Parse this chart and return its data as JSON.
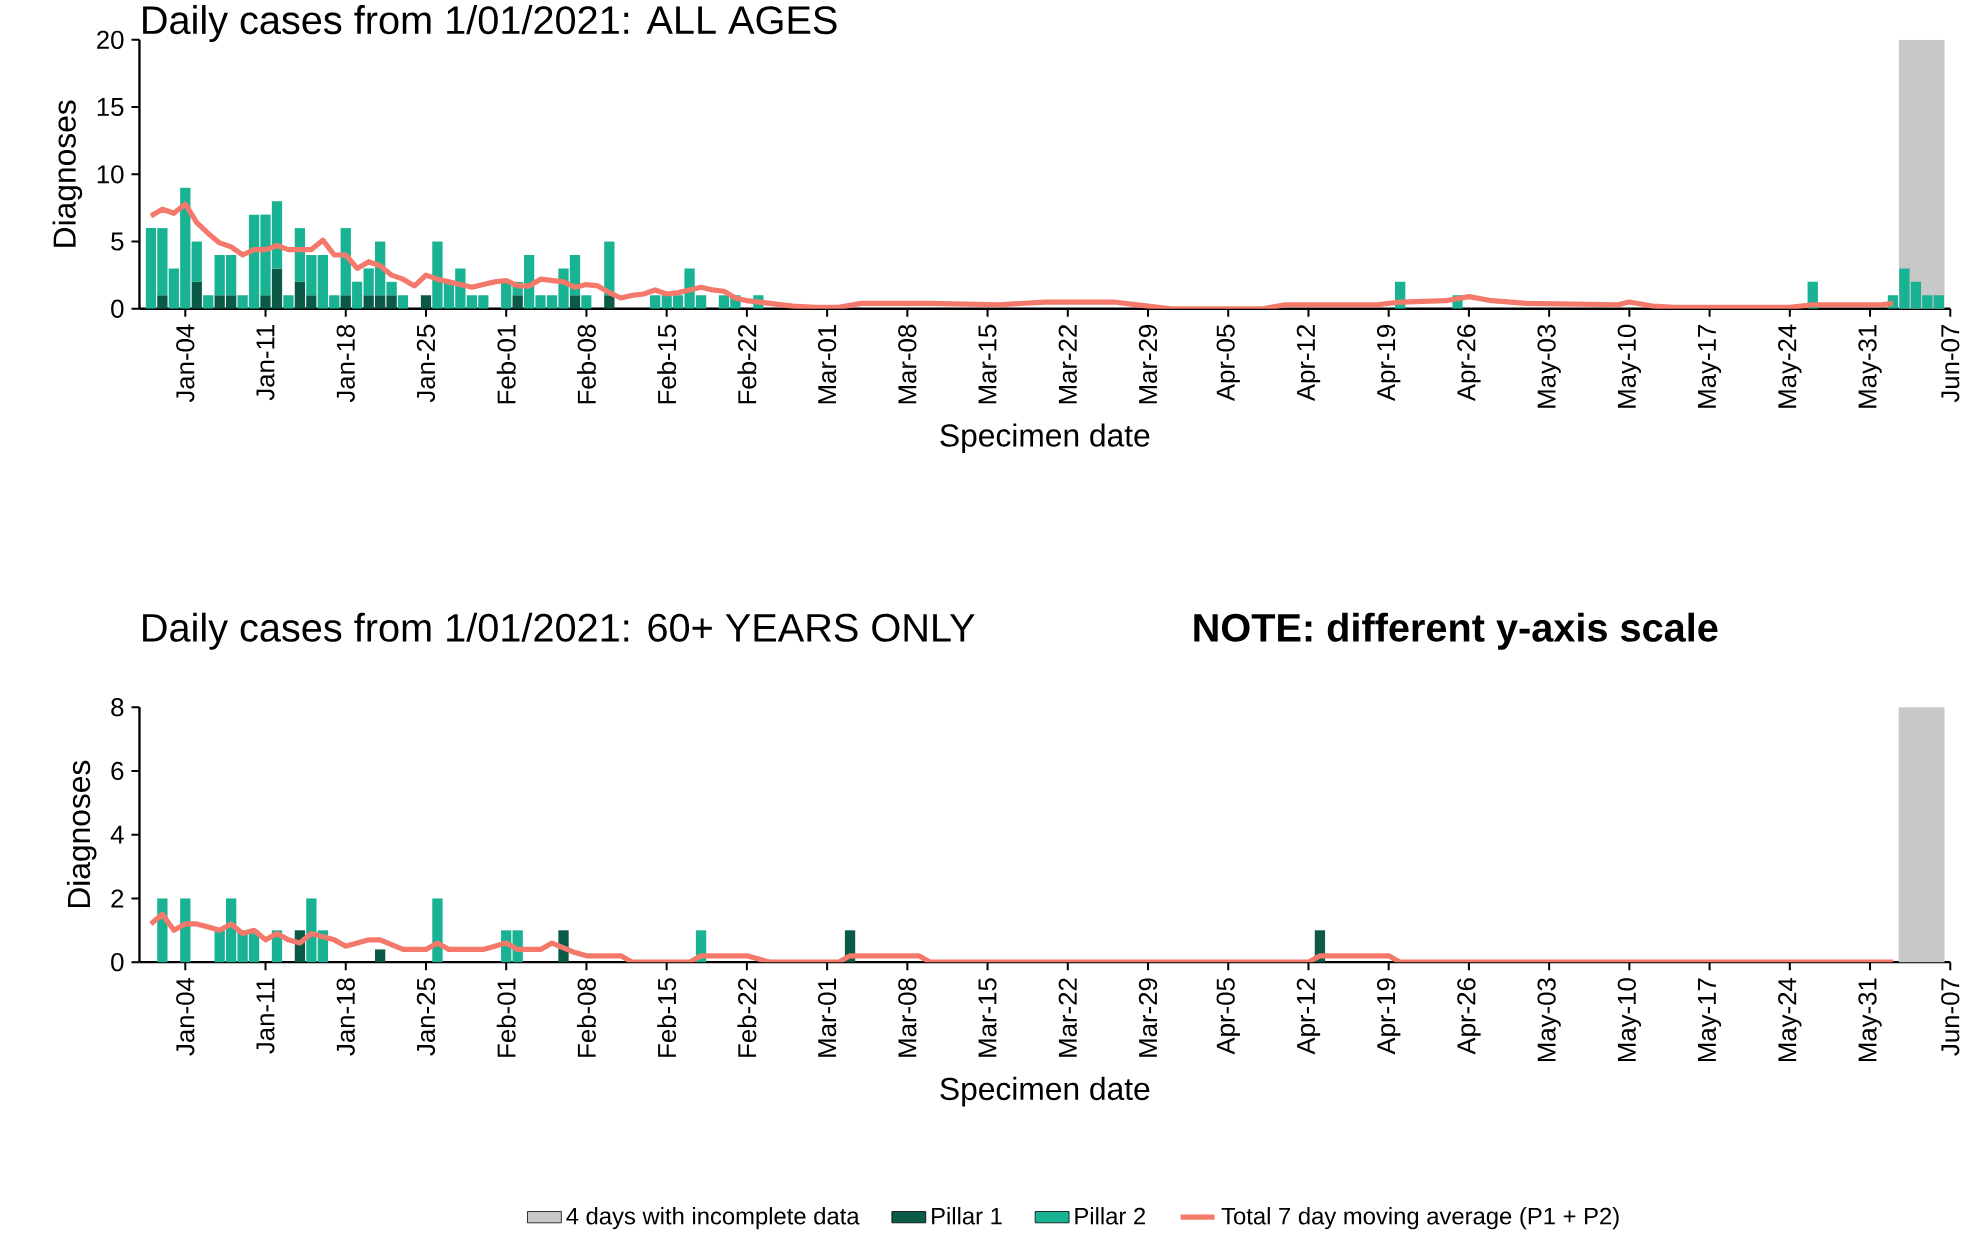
{
  "chart_data": [
    {
      "type": "bar",
      "stacked": true,
      "title": "Daily cases from 1/01/2021: ALL AGES",
      "xlabel": "Specimen date",
      "ylabel": "Diagnoses",
      "legend": false,
      "xlim": [
        "2020-12-31",
        "2021-06-07"
      ],
      "xticks": [
        {
          "value": "2021-01-04",
          "label": "Jan-04"
        },
        {
          "value": "2021-01-11",
          "label": "Jan-11"
        },
        {
          "value": "2021-01-18",
          "label": "Jan-18"
        },
        {
          "value": "2021-01-25",
          "label": "Jan-25"
        },
        {
          "value": "2021-02-01",
          "label": "Feb-01"
        },
        {
          "value": "2021-02-08",
          "label": "Feb-08"
        },
        {
          "value": "2021-02-15",
          "label": "Feb-15"
        },
        {
          "value": "2021-02-22",
          "label": "Feb-22"
        },
        {
          "value": "2021-03-01",
          "label": "Mar-01"
        },
        {
          "value": "2021-03-08",
          "label": "Mar-08"
        },
        {
          "value": "2021-03-15",
          "label": "Mar-15"
        },
        {
          "value": "2021-03-22",
          "label": "Mar-22"
        },
        {
          "value": "2021-03-29",
          "label": "Mar-29"
        },
        {
          "value": "2021-04-05",
          "label": "Apr-05"
        },
        {
          "value": "2021-04-12",
          "label": "Apr-12"
        },
        {
          "value": "2021-04-19",
          "label": "Apr-19"
        },
        {
          "value": "2021-04-26",
          "label": "Apr-26"
        },
        {
          "value": "2021-05-03",
          "label": "May-03"
        },
        {
          "value": "2021-05-10",
          "label": "May-10"
        },
        {
          "value": "2021-05-17",
          "label": "May-17"
        },
        {
          "value": "2021-05-24",
          "label": "May-24"
        },
        {
          "value": "2021-05-31",
          "label": "May-31"
        },
        {
          "value": "2021-06-07",
          "label": "Jun-07"
        }
      ],
      "ylim": [
        0,
        20
      ],
      "yticks": [
        0,
        5,
        10,
        15,
        20
      ],
      "bands": [
        {
          "axis": "x",
          "from": "2021-06-02T12:00",
          "to": "2021-06-06T12:00",
          "color": "#c8c8c8"
        }
      ],
      "x": [
        "2021-01-01",
        "2021-01-02",
        "2021-01-03",
        "2021-01-04",
        "2021-01-05",
        "2021-01-06",
        "2021-01-07",
        "2021-01-08",
        "2021-01-09",
        "2021-01-10",
        "2021-01-11",
        "2021-01-12",
        "2021-01-13",
        "2021-01-14",
        "2021-01-15",
        "2021-01-16",
        "2021-01-17",
        "2021-01-18",
        "2021-01-19",
        "2021-01-20",
        "2021-01-21",
        "2021-01-22",
        "2021-01-23",
        "2021-01-25",
        "2021-01-26",
        "2021-01-27",
        "2021-01-28",
        "2021-01-29",
        "2021-01-30",
        "2021-02-01",
        "2021-02-02",
        "2021-02-03",
        "2021-02-04",
        "2021-02-05",
        "2021-02-06",
        "2021-02-07",
        "2021-02-08",
        "2021-02-10",
        "2021-02-14",
        "2021-02-15",
        "2021-02-16",
        "2021-02-17",
        "2021-02-18",
        "2021-02-20",
        "2021-02-21",
        "2021-02-23",
        "2021-04-20",
        "2021-04-25",
        "2021-05-26",
        "2021-06-02",
        "2021-06-03",
        "2021-06-04",
        "2021-06-05",
        "2021-06-06"
      ],
      "series": [
        {
          "color": "#0b5a47",
          "values": [
            0,
            1,
            0,
            0,
            2,
            0,
            1,
            1,
            0,
            0,
            1,
            3,
            0,
            2,
            1,
            0,
            0,
            1,
            0,
            1,
            1,
            1,
            0,
            1,
            0,
            0,
            0,
            0,
            0,
            0,
            1,
            0,
            0,
            0,
            0,
            1,
            0,
            1,
            0,
            0,
            0,
            0,
            0,
            0,
            0,
            0,
            0,
            0,
            0,
            0,
            0,
            0,
            0,
            0
          ]
        },
        {
          "color": "#19b394",
          "values": [
            6,
            5,
            3,
            9,
            3,
            1,
            3,
            3,
            1,
            7,
            6,
            5,
            1,
            4,
            3,
            4,
            1,
            5,
            2,
            2,
            4,
            1,
            1,
            0,
            5,
            2,
            3,
            1,
            1,
            2,
            1,
            4,
            1,
            1,
            3,
            3,
            1,
            4,
            1,
            1,
            1,
            3,
            1,
            1,
            1,
            1,
            2,
            1,
            2,
            1,
            3,
            2,
            1,
            1
          ]
        },
        {
          "type": "line",
          "color": "#f4796b",
          "x": [
            "2021-01-01",
            "2021-01-02",
            "2021-01-03",
            "2021-01-04",
            "2021-01-05",
            "2021-01-06",
            "2021-01-07",
            "2021-01-08",
            "2021-01-09",
            "2021-01-10",
            "2021-01-11",
            "2021-01-12",
            "2021-01-13",
            "2021-01-14",
            "2021-01-15",
            "2021-01-16",
            "2021-01-17",
            "2021-01-18",
            "2021-01-19",
            "2021-01-20",
            "2021-01-21",
            "2021-01-22",
            "2021-01-23",
            "2021-01-24",
            "2021-01-25",
            "2021-01-26",
            "2021-01-27",
            "2021-01-28",
            "2021-01-29",
            "2021-01-30",
            "2021-01-31",
            "2021-02-01",
            "2021-02-02",
            "2021-02-03",
            "2021-02-04",
            "2021-02-05",
            "2021-02-06",
            "2021-02-07",
            "2021-02-08",
            "2021-02-09",
            "2021-02-10",
            "2021-02-11",
            "2021-02-12",
            "2021-02-13",
            "2021-02-14",
            "2021-02-15",
            "2021-02-16",
            "2021-02-17",
            "2021-02-18",
            "2021-02-19",
            "2021-02-20",
            "2021-02-21",
            "2021-02-22",
            "2021-02-24",
            "2021-02-26",
            "2021-02-28",
            "2021-03-02",
            "2021-03-04",
            "2021-03-10",
            "2021-03-16",
            "2021-03-20",
            "2021-03-26",
            "2021-03-29",
            "2021-03-31",
            "2021-04-08",
            "2021-04-10",
            "2021-04-18",
            "2021-04-20",
            "2021-04-24",
            "2021-04-26",
            "2021-04-28",
            "2021-05-01",
            "2021-05-09",
            "2021-05-10",
            "2021-05-12",
            "2021-05-14",
            "2021-05-24",
            "2021-05-26",
            "2021-06-01",
            "2021-06-02"
          ],
          "values": [
            6.9,
            7.4,
            7.1,
            7.8,
            6.4,
            5.6,
            4.9,
            4.6,
            4.0,
            4.4,
            4.4,
            4.7,
            4.4,
            4.4,
            4.4,
            5.1,
            4.0,
            4.0,
            3.0,
            3.5,
            3.2,
            2.5,
            2.2,
            1.7,
            2.5,
            2.2,
            2.0,
            1.8,
            1.6,
            1.8,
            2.0,
            2.1,
            1.7,
            1.7,
            2.2,
            2.1,
            2.0,
            1.6,
            1.8,
            1.7,
            1.2,
            0.8,
            1.0,
            1.1,
            1.4,
            1.1,
            1.2,
            1.4,
            1.6,
            1.4,
            1.3,
            0.8,
            0.6,
            0.4,
            0.2,
            0.1,
            0.1,
            0.4,
            0.4,
            0.3,
            0.5,
            0.5,
            0.2,
            0.0,
            0.0,
            0.3,
            0.3,
            0.5,
            0.6,
            0.9,
            0.6,
            0.4,
            0.3,
            0.5,
            0.2,
            0.1,
            0.1,
            0.3,
            0.3,
            0.4
          ]
        }
      ]
    },
    {
      "type": "bar",
      "stacked": true,
      "title": "Daily cases from 1/01/2021: 60+ YEARS ONLY",
      "subtitle": "NOTE: different y-axis scale",
      "xlabel": "Specimen date",
      "ylabel": "Diagnoses",
      "legend": "bottom",
      "xlim": [
        "2020-12-31",
        "2021-06-07"
      ],
      "xticks": [
        {
          "value": "2021-01-04",
          "label": "Jan-04"
        },
        {
          "value": "2021-01-11",
          "label": "Jan-11"
        },
        {
          "value": "2021-01-18",
          "label": "Jan-18"
        },
        {
          "value": "2021-01-25",
          "label": "Jan-25"
        },
        {
          "value": "2021-02-01",
          "label": "Feb-01"
        },
        {
          "value": "2021-02-08",
          "label": "Feb-08"
        },
        {
          "value": "2021-02-15",
          "label": "Feb-15"
        },
        {
          "value": "2021-02-22",
          "label": "Feb-22"
        },
        {
          "value": "2021-03-01",
          "label": "Mar-01"
        },
        {
          "value": "2021-03-08",
          "label": "Mar-08"
        },
        {
          "value": "2021-03-15",
          "label": "Mar-15"
        },
        {
          "value": "2021-03-22",
          "label": "Mar-22"
        },
        {
          "value": "2021-03-29",
          "label": "Mar-29"
        },
        {
          "value": "2021-04-05",
          "label": "Apr-05"
        },
        {
          "value": "2021-04-12",
          "label": "Apr-12"
        },
        {
          "value": "2021-04-19",
          "label": "Apr-19"
        },
        {
          "value": "2021-04-26",
          "label": "Apr-26"
        },
        {
          "value": "2021-05-03",
          "label": "May-03"
        },
        {
          "value": "2021-05-10",
          "label": "May-10"
        },
        {
          "value": "2021-05-17",
          "label": "May-17"
        },
        {
          "value": "2021-05-24",
          "label": "May-24"
        },
        {
          "value": "2021-05-31",
          "label": "May-31"
        },
        {
          "value": "2021-06-07",
          "label": "Jun-07"
        }
      ],
      "ylim": [
        0,
        8
      ],
      "yticks": [
        0,
        2,
        4,
        6,
        8
      ],
      "bands": [
        {
          "axis": "x",
          "from": "2021-06-02T12:00",
          "to": "2021-06-06T12:00",
          "label": "4 days with incomplete data",
          "color": "#c8c8c8"
        }
      ],
      "x": [
        "2021-01-02",
        "2021-01-04",
        "2021-01-07",
        "2021-01-08",
        "2021-01-09",
        "2021-01-10",
        "2021-01-12",
        "2021-01-14",
        "2021-01-15",
        "2021-01-16",
        "2021-01-21",
        "2021-01-26",
        "2021-02-01",
        "2021-02-02",
        "2021-02-06",
        "2021-02-18",
        "2021-03-03",
        "2021-04-13"
      ],
      "series": [
        {
          "name": "Pillar 1",
          "color": "#0b5a47",
          "values": [
            0,
            0,
            0,
            0,
            0,
            0,
            0,
            1,
            0,
            0,
            0.4,
            0,
            0,
            0,
            1,
            0,
            1,
            1
          ]
        },
        {
          "name": "Pillar 2",
          "color": "#19b394",
          "values": [
            2,
            2,
            1,
            2,
            1,
            1,
            1,
            0,
            2,
            1,
            0,
            2,
            1,
            1,
            0,
            1,
            0,
            0
          ]
        },
        {
          "name": "Total 7 day moving average (P1 + P2)",
          "type": "line",
          "color": "#f4796b",
          "x": [
            "2021-01-01",
            "2021-01-02",
            "2021-01-03",
            "2021-01-04",
            "2021-01-05",
            "2021-01-06",
            "2021-01-07",
            "2021-01-08",
            "2021-01-09",
            "2021-01-10",
            "2021-01-11",
            "2021-01-12",
            "2021-01-13",
            "2021-01-14",
            "2021-01-15",
            "2021-01-16",
            "2021-01-17",
            "2021-01-18",
            "2021-01-20",
            "2021-01-21",
            "2021-01-23",
            "2021-01-25",
            "2021-01-26",
            "2021-01-27",
            "2021-01-30",
            "2021-02-01",
            "2021-02-02",
            "2021-02-04",
            "2021-02-05",
            "2021-02-07",
            "2021-02-08",
            "2021-02-11",
            "2021-02-12",
            "2021-02-17",
            "2021-02-18",
            "2021-02-22",
            "2021-02-24",
            "2021-03-02",
            "2021-03-03",
            "2021-03-09",
            "2021-03-10",
            "2021-04-12",
            "2021-04-13",
            "2021-04-19",
            "2021-04-20",
            "2021-06-02"
          ],
          "values": [
            1.2,
            1.5,
            1.0,
            1.2,
            1.2,
            1.1,
            1.0,
            1.2,
            0.9,
            1.0,
            0.7,
            0.9,
            0.7,
            0.6,
            0.9,
            0.8,
            0.7,
            0.5,
            0.7,
            0.7,
            0.4,
            0.4,
            0.6,
            0.4,
            0.4,
            0.6,
            0.4,
            0.4,
            0.6,
            0.3,
            0.2,
            0.2,
            0,
            0,
            0.2,
            0.2,
            0,
            0,
            0.2,
            0.2,
            0,
            0,
            0.2,
            0.2,
            0,
            0
          ]
        }
      ]
    }
  ]
}
